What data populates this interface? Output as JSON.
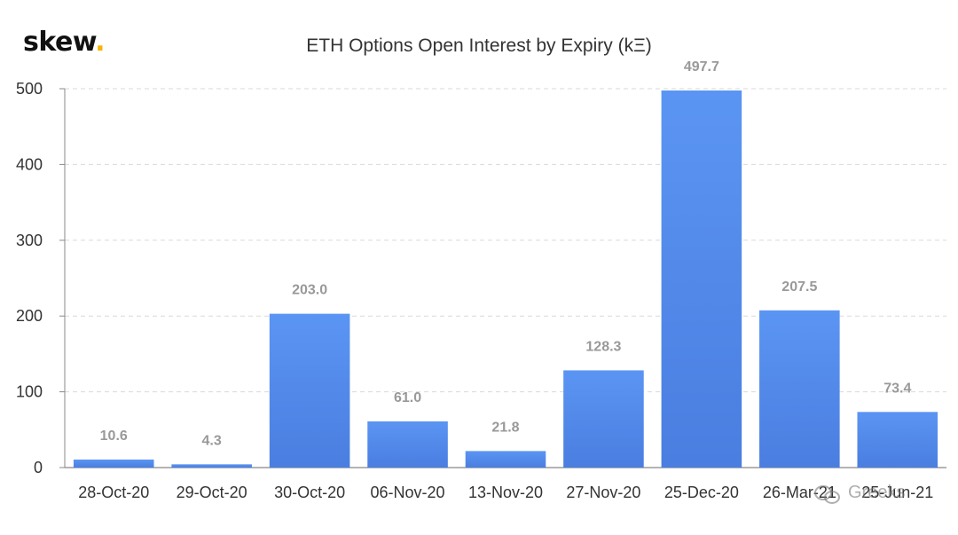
{
  "brand": {
    "name": "skew",
    "dot": "."
  },
  "watermark": {
    "text": "Greeks",
    "icon": "wechat-icon"
  },
  "colors": {
    "bar_top": "#5b95f3",
    "bar_bottom": "#4a7ee0",
    "grid": "#d9d9d9",
    "tick_label": "#333333",
    "value_label": "#999999"
  },
  "chart_data": {
    "type": "bar",
    "title": "ETH Options Open Interest by Expiry (kΞ)",
    "categories": [
      "28-Oct-20",
      "29-Oct-20",
      "30-Oct-20",
      "06-Nov-20",
      "13-Nov-20",
      "27-Nov-20",
      "25-Dec-20",
      "26-Mar-21",
      "25-Jun-21"
    ],
    "values": [
      10.6,
      4.3,
      203.0,
      61.0,
      21.8,
      128.3,
      497.7,
      207.5,
      73.4
    ],
    "value_labels": [
      "10.6",
      "4.3",
      "203.0",
      "61.0",
      "21.8",
      "128.3",
      "497.7",
      "207.5",
      "73.4"
    ],
    "ylim": [
      0,
      500
    ],
    "yticks": [
      0,
      100,
      200,
      300,
      400,
      500
    ],
    "grid": true,
    "xlabel": "",
    "ylabel": ""
  }
}
